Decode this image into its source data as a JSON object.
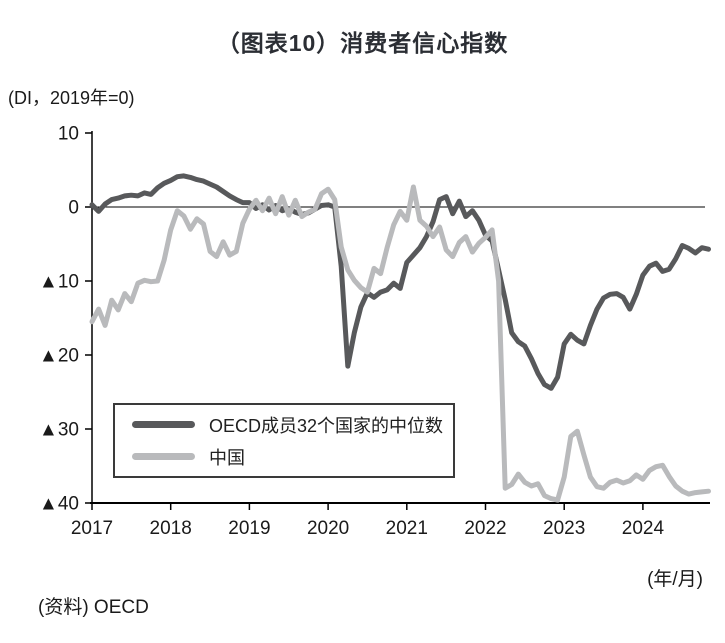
{
  "title": "（图表10）消费者信心指数",
  "y_axis_unit": "(DI，2019年=0)",
  "x_axis_unit": "(年/月)",
  "source": "(资料)  OECD",
  "colors": {
    "oecd_line": "#58595b",
    "china_line": "#b9babc",
    "axis": "#000000",
    "text": "#1a1a1a"
  },
  "legend": {
    "oecd_label": "OECD成员32个国家的中位数",
    "china_label": "中国"
  },
  "chart_data": {
    "type": "line",
    "title": "（图表10）消费者信心指数",
    "ylabel": "(DI，2019年=0)",
    "xlabel": "(年/月)",
    "ylim": [
      -40,
      10
    ],
    "grid": "zero-line-only",
    "legend_position": "inside-bottom-left",
    "x_start": "2017-01",
    "x_end": "2024-11",
    "x_tick_labels": [
      "2017",
      "2018",
      "2019",
      "2020",
      "2021",
      "2022",
      "2023",
      "2024"
    ],
    "y_tick_labels": [
      "10",
      "0",
      "▲10",
      "▲20",
      "▲30",
      "▲40"
    ],
    "y_tick_values": [
      10,
      0,
      -10,
      -20,
      -30,
      -40
    ],
    "series": [
      {
        "name": "OECD成员32个国家的中位数",
        "color": "#58595b",
        "monthly_values": [
          0.3,
          -0.6,
          0.4,
          1.0,
          1.2,
          1.5,
          1.6,
          1.5,
          1.9,
          1.7,
          2.6,
          3.2,
          3.6,
          4.1,
          4.2,
          4.0,
          3.7,
          3.5,
          3.1,
          2.7,
          2.1,
          1.5,
          1.0,
          0.6,
          0.6,
          -0.2,
          0.3,
          -0.4,
          0.2,
          -0.5,
          -0.2,
          -0.7,
          -1.0,
          -0.8,
          -0.3,
          0.2,
          0.3,
          0.0,
          -8.0,
          -21.5,
          -17.0,
          -13.5,
          -11.6,
          -12.2,
          -11.5,
          -11.2,
          -10.3,
          -11.0,
          -7.5,
          -6.5,
          -5.5,
          -4.0,
          -2.0,
          1.0,
          1.4,
          -0.9,
          0.8,
          -1.3,
          -0.5,
          -1.8,
          -3.8,
          -4.6,
          -8.5,
          -12.5,
          -17.0,
          -18.2,
          -18.8,
          -20.5,
          -22.5,
          -24.0,
          -24.5,
          -23.0,
          -18.5,
          -17.2,
          -18.0,
          -18.5,
          -16.0,
          -13.8,
          -12.3,
          -11.8,
          -11.7,
          -12.2,
          -13.8,
          -11.8,
          -9.2,
          -8.0,
          -7.6,
          -8.7,
          -8.4,
          -7.0,
          -5.2,
          -5.6,
          -6.2,
          -5.5,
          -5.7
        ]
      },
      {
        "name": "中国",
        "color": "#b9babc",
        "monthly_values": [
          -15.5,
          -13.8,
          -16.0,
          -12.6,
          -13.9,
          -11.7,
          -12.8,
          -10.3,
          -9.9,
          -10.1,
          -10.0,
          -7.2,
          -3.1,
          -0.5,
          -1.2,
          -3.0,
          -1.6,
          -2.3,
          -6.0,
          -6.7,
          -4.7,
          -6.5,
          -6.0,
          -2.2,
          -0.3,
          0.9,
          -0.5,
          1.2,
          -0.9,
          1.4,
          -1.1,
          0.9,
          -1.3,
          -0.7,
          -0.3,
          1.8,
          2.4,
          1.0,
          -5.4,
          -8.5,
          -9.9,
          -10.9,
          -11.5,
          -8.3,
          -9.0,
          -5.5,
          -2.4,
          -0.6,
          -1.8,
          2.7,
          -1.8,
          -2.6,
          -4.0,
          -2.7,
          -5.8,
          -6.7,
          -4.8,
          -4.0,
          -6.1,
          -4.9,
          -4.1,
          -3.1,
          -10.0,
          -38.0,
          -37.5,
          -36.1,
          -37.2,
          -37.7,
          -37.4,
          -39.0,
          -39.4,
          -39.6,
          -36.5,
          -31.0,
          -30.3,
          -33.5,
          -36.5,
          -37.8,
          -38.0,
          -37.2,
          -36.9,
          -37.3,
          -37.0,
          -36.2,
          -36.8,
          -35.6,
          -35.1,
          -34.9,
          -36.4,
          -37.7,
          -38.4,
          -38.8,
          -38.6,
          -38.5,
          -38.4
        ]
      }
    ]
  }
}
